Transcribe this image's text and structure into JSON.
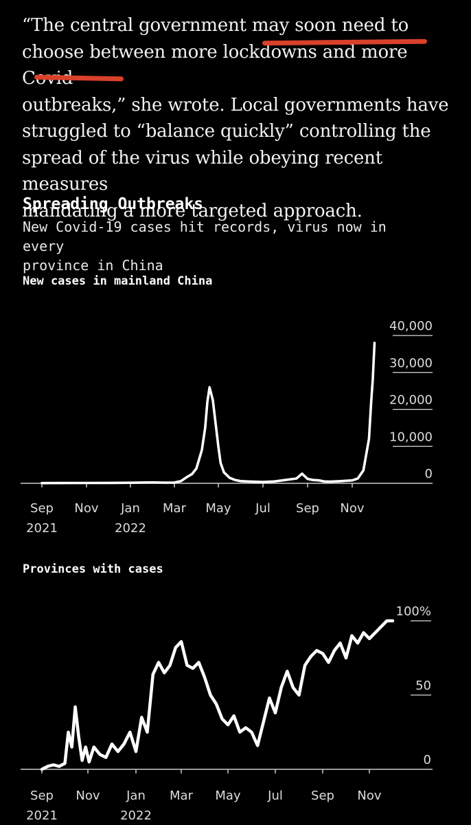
{
  "article": {
    "lines": [
      "“The central government may soon need to",
      "choose between more lockdowns and more Covid",
      "outbreaks,” she wrote. Local governments have",
      "struggled to “balance quickly” controlling the",
      "spread of the virus while obeying recent measures",
      "mandating a more targeted approach."
    ],
    "highlight_color": "#d9412a"
  },
  "graphic": {
    "title": "Spreading Outbreaks",
    "subtitle_lines": [
      "New Covid-19 cases hit records, virus now in every",
      "province in China"
    ]
  },
  "chart_data": [
    {
      "type": "line",
      "title": "New cases in mainland China",
      "x_tick_labels": [
        "Sep",
        "Nov",
        "Jan",
        "Mar",
        "May",
        "Jul",
        "Sep",
        "Nov"
      ],
      "x_year_labels": [
        {
          "tick": 0,
          "label": "2021"
        },
        {
          "tick": 2,
          "label": "2022"
        }
      ],
      "y_ticks": [
        0,
        10000,
        20000,
        30000,
        40000
      ],
      "y_tick_labels": [
        "0",
        "10,000",
        "20,000",
        "30,000",
        "40,000"
      ],
      "ylim": [
        0,
        40000
      ],
      "xlim_months": [
        0,
        15.5
      ],
      "line_color": "#ffffff",
      "series": [
        {
          "months": [
            0,
            1,
            2,
            3,
            4,
            4.5,
            5,
            5.5,
            6,
            6.3,
            6.6,
            6.8,
            7,
            7.1,
            7.25,
            7.4,
            7.5,
            7.6,
            7.75,
            7.9,
            8,
            8.1,
            8.25,
            8.5,
            8.75,
            9,
            9.5,
            10,
            10.5,
            11,
            11.5,
            11.75,
            12,
            12.25,
            12.5,
            12.75,
            13,
            13.5,
            14,
            14.25,
            14.5,
            14.75,
            14.85,
            14.92,
            15
          ],
          "values": [
            50,
            70,
            90,
            110,
            150,
            200,
            250,
            180,
            200,
            600,
            1800,
            2500,
            4000,
            6000,
            9000,
            15000,
            22000,
            26000,
            22500,
            15000,
            10000,
            5500,
            3000,
            1500,
            900,
            600,
            450,
            350,
            500,
            900,
            1300,
            2600,
            1200,
            900,
            800,
            500,
            450,
            600,
            800,
            1300,
            3500,
            12000,
            22000,
            28000,
            38000
          ]
        }
      ]
    },
    {
      "type": "line",
      "title": "Provinces with cases",
      "x_tick_labels": [
        "Sep",
        "Nov",
        "Jan",
        "Mar",
        "May",
        "Jul",
        "Sep",
        "Nov"
      ],
      "x_year_labels": [
        {
          "tick": 0,
          "label": "2021"
        },
        {
          "tick": 2,
          "label": "2022"
        }
      ],
      "y_ticks": [
        0,
        50,
        100
      ],
      "y_tick_labels": [
        "0",
        "50",
        "100%"
      ],
      "ylim": [
        0,
        100
      ],
      "xlim_months": [
        0,
        15.5
      ],
      "line_color": "#ffffff",
      "series": [
        {
          "months": [
            0,
            0.25,
            0.5,
            0.75,
            1,
            1.15,
            1.3,
            1.45,
            1.6,
            1.75,
            1.9,
            2.05,
            2.25,
            2.5,
            2.75,
            3,
            3.25,
            3.5,
            3.75,
            4,
            4.25,
            4.5,
            4.75,
            5,
            5.25,
            5.5,
            5.75,
            6,
            6.25,
            6.5,
            6.75,
            7,
            7.25,
            7.5,
            7.75,
            8,
            8.25,
            8.5,
            8.75,
            9,
            9.25,
            9.5,
            9.75,
            10,
            10.25,
            10.5,
            10.75,
            11,
            11.25,
            11.5,
            11.75,
            12,
            12.25,
            12.5,
            12.75,
            13,
            13.25,
            13.5,
            13.75,
            14,
            14.25,
            14.5,
            14.75,
            15
          ],
          "values": [
            0,
            2,
            3,
            2,
            4,
            25,
            15,
            42,
            22,
            6,
            15,
            5,
            15,
            10,
            8,
            17,
            12,
            17,
            25,
            12,
            35,
            25,
            64,
            72,
            65,
            70,
            82,
            86,
            70,
            68,
            72,
            62,
            50,
            44,
            34,
            30,
            36,
            25,
            28,
            25,
            16,
            32,
            48,
            38,
            55,
            66,
            55,
            50,
            70,
            76,
            80,
            78,
            72,
            80,
            85,
            75,
            90,
            85,
            92,
            88,
            92,
            96,
            100,
            100
          ]
        }
      ]
    }
  ]
}
